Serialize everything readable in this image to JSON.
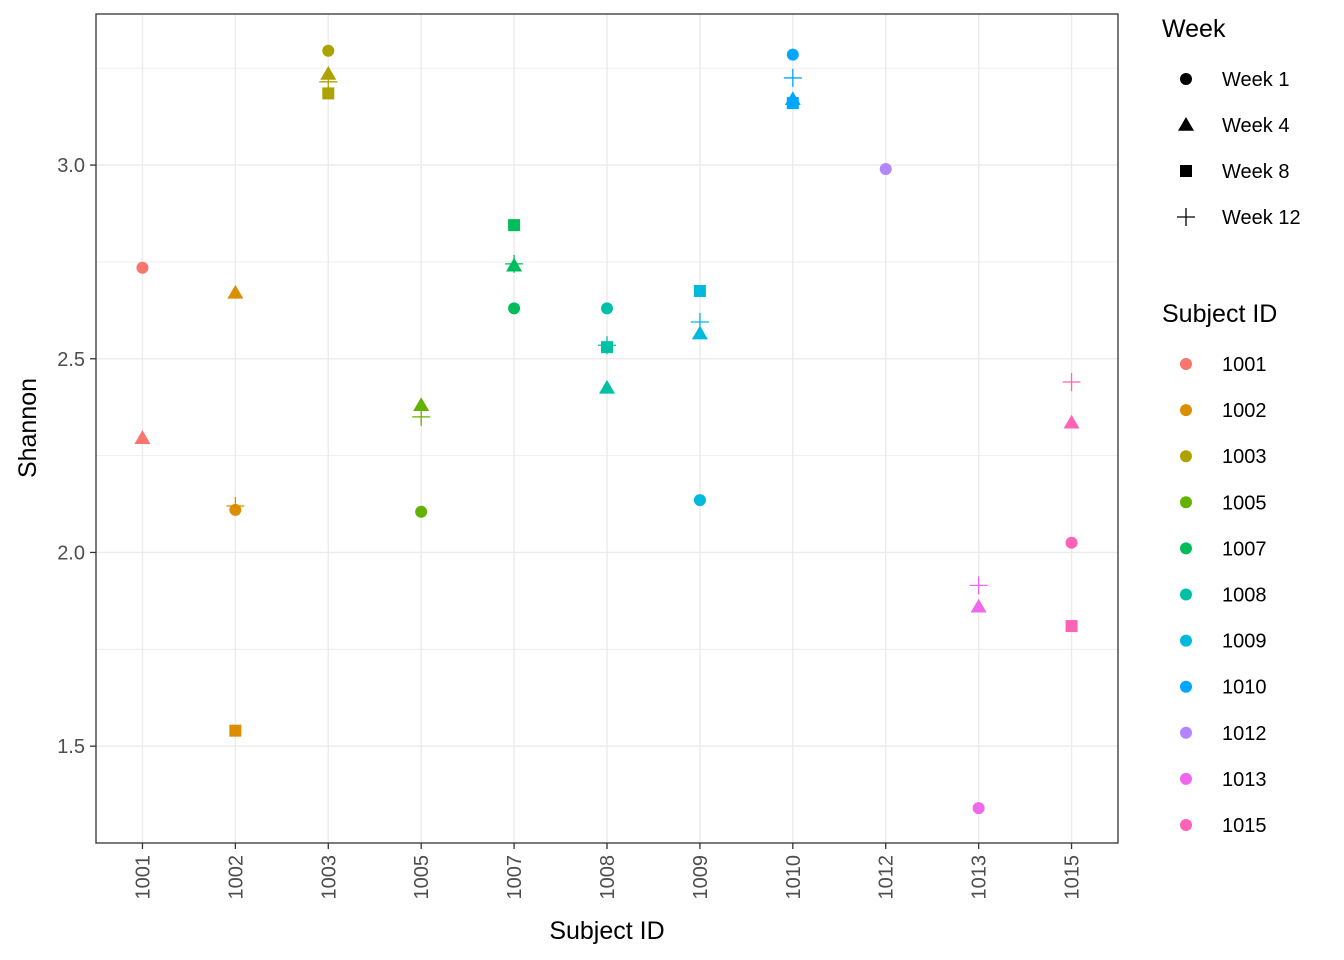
{
  "chart_data": {
    "type": "scatter",
    "title": "",
    "xlabel": "Subject ID",
    "ylabel": "Shannon",
    "categories": [
      "1001",
      "1002",
      "1003",
      "1005",
      "1007",
      "1008",
      "1009",
      "1010",
      "1012",
      "1013",
      "1015"
    ],
    "ylim": [
      1.25,
      3.39
    ],
    "yticks": [
      1.5,
      2.0,
      2.5,
      3.0
    ],
    "ytick_labels": [
      "1.5",
      "2.0",
      "2.5",
      "3.0"
    ],
    "grid": true,
    "colors": {
      "1001": "#F8766D",
      "1002": "#DB8E00",
      "1003": "#AEA200",
      "1005": "#64B200",
      "1007": "#00BD5C",
      "1008": "#00C1A7",
      "1009": "#00BADE",
      "1010": "#00A6FF",
      "1012": "#B385FF",
      "1013": "#EF67EB",
      "1015": "#FF63B6"
    },
    "shape_legend": {
      "title": "Week",
      "items": [
        {
          "label": "Week 1",
          "shape": "circle"
        },
        {
          "label": "Week 4",
          "shape": "triangle"
        },
        {
          "label": "Week 8",
          "shape": "square"
        },
        {
          "label": "Week 12",
          "shape": "plus"
        }
      ]
    },
    "color_legend": {
      "title": "Subject ID",
      "items": [
        "1001",
        "1002",
        "1003",
        "1005",
        "1007",
        "1008",
        "1009",
        "1010",
        "1012",
        "1013",
        "1015"
      ]
    },
    "points": [
      {
        "subject": "1001",
        "week": "Week 1",
        "value": 2.735
      },
      {
        "subject": "1001",
        "week": "Week 4",
        "value": 2.295
      },
      {
        "subject": "1002",
        "week": "Week 1",
        "value": 2.11
      },
      {
        "subject": "1002",
        "week": "Week 4",
        "value": 2.67
      },
      {
        "subject": "1002",
        "week": "Week 8",
        "value": 1.54
      },
      {
        "subject": "1002",
        "week": "Week 12",
        "value": 2.12
      },
      {
        "subject": "1003",
        "week": "Week 1",
        "value": 3.295
      },
      {
        "subject": "1003",
        "week": "Week 4",
        "value": 3.235
      },
      {
        "subject": "1003",
        "week": "Week 8",
        "value": 3.185
      },
      {
        "subject": "1003",
        "week": "Week 12",
        "value": 3.215
      },
      {
        "subject": "1005",
        "week": "Week 1",
        "value": 2.105
      },
      {
        "subject": "1005",
        "week": "Week 4",
        "value": 2.38
      },
      {
        "subject": "1005",
        "week": "Week 12",
        "value": 2.35
      },
      {
        "subject": "1007",
        "week": "Week 1",
        "value": 2.63
      },
      {
        "subject": "1007",
        "week": "Week 4",
        "value": 2.74
      },
      {
        "subject": "1007",
        "week": "Week 8",
        "value": 2.845
      },
      {
        "subject": "1007",
        "week": "Week 12",
        "value": 2.745
      },
      {
        "subject": "1008",
        "week": "Week 1",
        "value": 2.63
      },
      {
        "subject": "1008",
        "week": "Week 4",
        "value": 2.425
      },
      {
        "subject": "1008",
        "week": "Week 8",
        "value": 2.53
      },
      {
        "subject": "1008",
        "week": "Week 12",
        "value": 2.535
      },
      {
        "subject": "1009",
        "week": "Week 1",
        "value": 2.135
      },
      {
        "subject": "1009",
        "week": "Week 4",
        "value": 2.565
      },
      {
        "subject": "1009",
        "week": "Week 8",
        "value": 2.675
      },
      {
        "subject": "1009",
        "week": "Week 12",
        "value": 2.595
      },
      {
        "subject": "1010",
        "week": "Week 1",
        "value": 3.285
      },
      {
        "subject": "1010",
        "week": "Week 4",
        "value": 3.17
      },
      {
        "subject": "1010",
        "week": "Week 8",
        "value": 3.16
      },
      {
        "subject": "1010",
        "week": "Week 12",
        "value": 3.225
      },
      {
        "subject": "1012",
        "week": "Week 1",
        "value": 2.99
      },
      {
        "subject": "1013",
        "week": "Week 1",
        "value": 1.34
      },
      {
        "subject": "1013",
        "week": "Week 4",
        "value": 1.86
      },
      {
        "subject": "1013",
        "week": "Week 12",
        "value": 1.915
      },
      {
        "subject": "1015",
        "week": "Week 1",
        "value": 2.025
      },
      {
        "subject": "1015",
        "week": "Week 4",
        "value": 2.335
      },
      {
        "subject": "1015",
        "week": "Week 8",
        "value": 1.81
      },
      {
        "subject": "1015",
        "week": "Week 12",
        "value": 2.44
      }
    ]
  }
}
